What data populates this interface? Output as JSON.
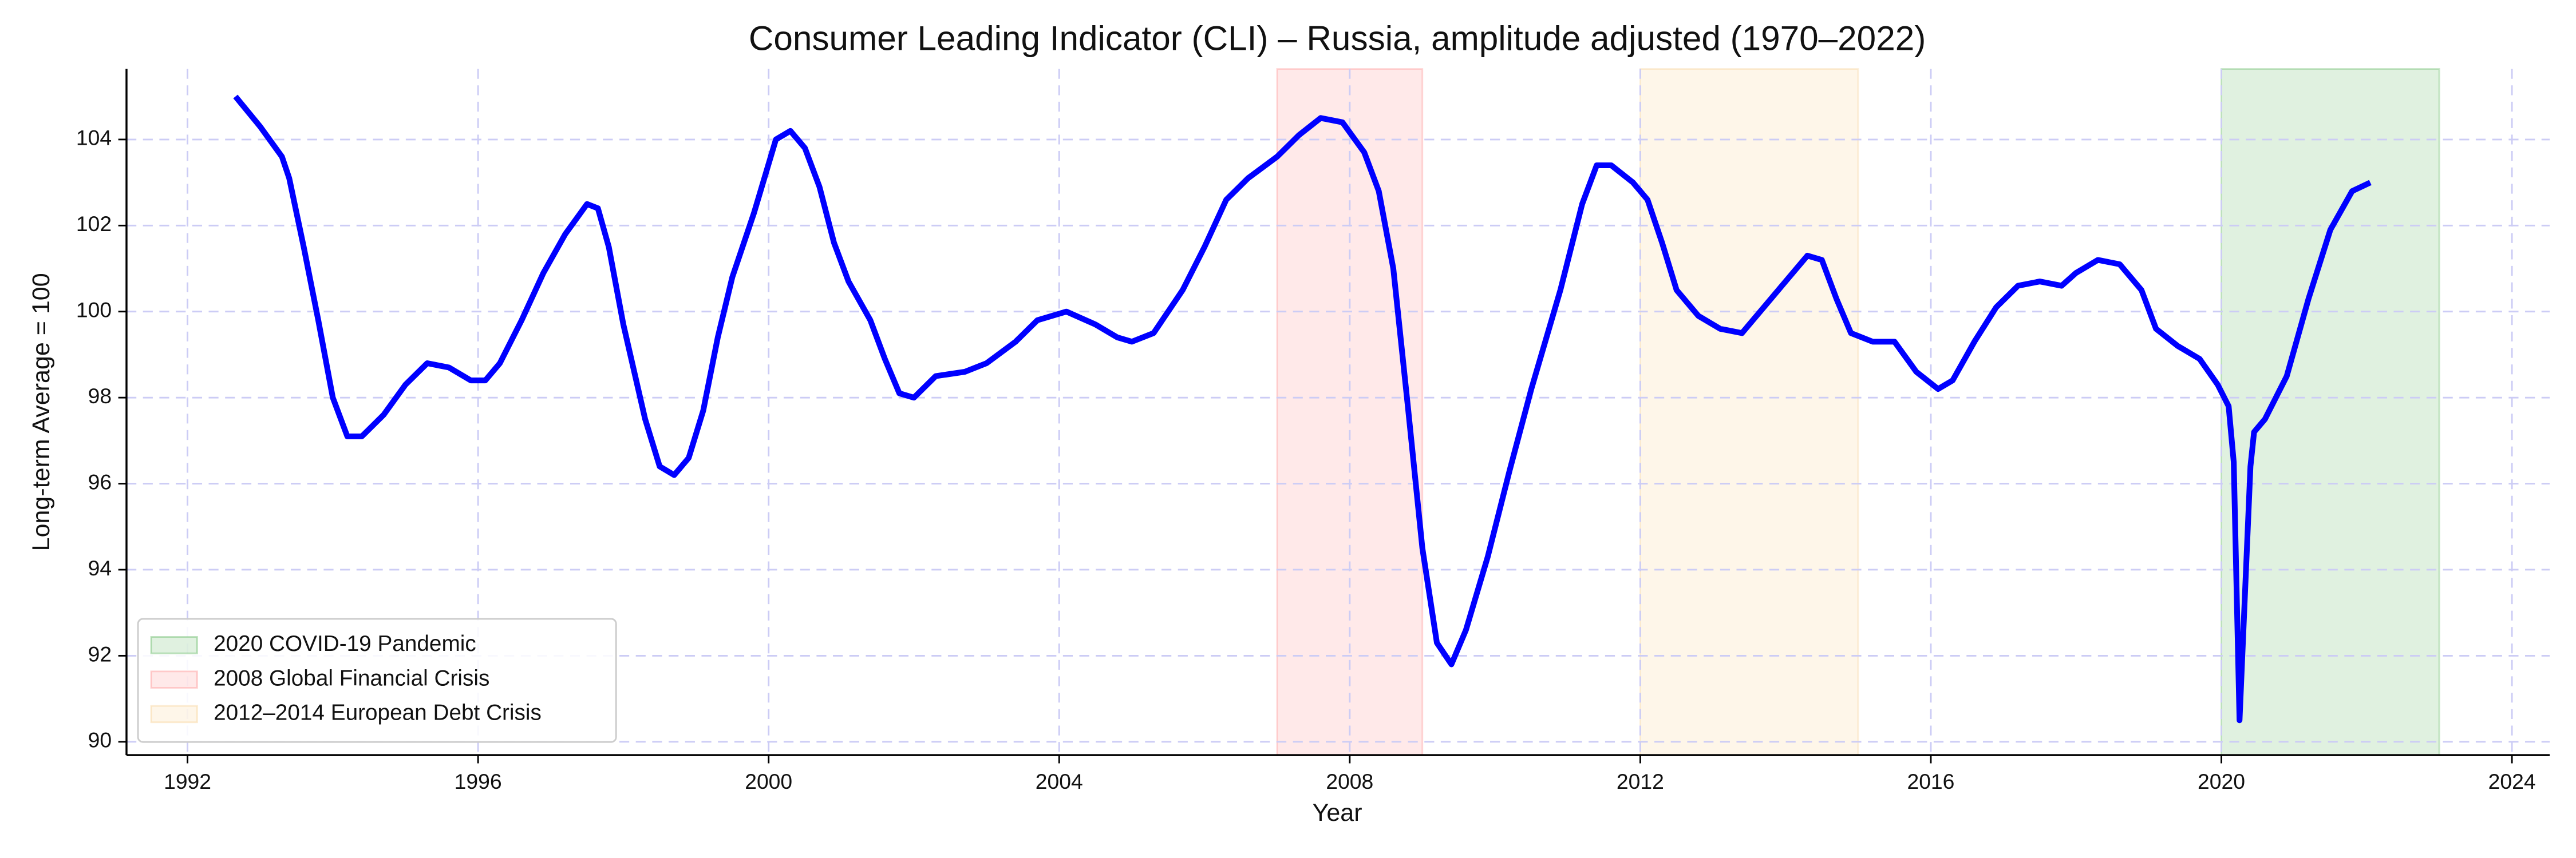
{
  "chart_data": {
    "type": "line",
    "title": "Consumer Leading Indicator (CLI) – Russia, amplitude adjusted (1970–2022)",
    "x_label": "Year",
    "y_label": "Long-term Average = 100",
    "x": [
      1992.66,
      1993.0,
      1993.3,
      1993.4,
      1993.6,
      1993.8,
      1994.0,
      1994.2,
      1994.4,
      1994.7,
      1995.0,
      1995.3,
      1995.6,
      1995.9,
      1996.1,
      1996.3,
      1996.6,
      1996.9,
      1997.2,
      1997.5,
      1997.65,
      1997.8,
      1998.0,
      1998.3,
      1998.5,
      1998.7,
      1998.9,
      1999.1,
      1999.3,
      1999.5,
      1999.8,
      2000.1,
      2000.3,
      2000.5,
      2000.7,
      2000.9,
      2001.1,
      2001.4,
      2001.6,
      2001.8,
      2002.0,
      2002.3,
      2002.7,
      2003.0,
      2003.4,
      2003.7,
      2004.1,
      2004.5,
      2004.8,
      2005.0,
      2005.3,
      2005.7,
      2006.0,
      2006.3,
      2006.6,
      2007.0,
      2007.3,
      2007.6,
      2007.9,
      2008.2,
      2008.4,
      2008.6,
      2008.8,
      2009.0,
      2009.2,
      2009.4,
      2009.6,
      2009.9,
      2010.2,
      2010.5,
      2010.9,
      2011.2,
      2011.4,
      2011.6,
      2011.9,
      2012.1,
      2012.3,
      2012.5,
      2012.8,
      2013.1,
      2013.4,
      2013.7,
      2014.0,
      2014.3,
      2014.5,
      2014.7,
      2014.9,
      2015.2,
      2015.5,
      2015.8,
      2016.1,
      2016.3,
      2016.6,
      2016.9,
      2017.2,
      2017.5,
      2017.8,
      2018.0,
      2018.3,
      2018.6,
      2018.9,
      2019.1,
      2019.4,
      2019.7,
      2019.95,
      2020.1,
      2020.17,
      2020.25,
      2020.4,
      2020.45,
      2020.6,
      2020.9,
      2021.2,
      2021.5,
      2021.8,
      2022.05
    ],
    "series": [
      {
        "name": "CLI",
        "color": "#0000ff",
        "values": [
          105.0,
          104.3,
          103.6,
          103.1,
          101.5,
          99.8,
          98.0,
          97.1,
          97.1,
          97.6,
          98.3,
          98.8,
          98.7,
          98.4,
          98.4,
          98.8,
          99.8,
          100.9,
          101.8,
          102.5,
          102.4,
          101.5,
          99.7,
          97.5,
          96.4,
          96.2,
          96.6,
          97.7,
          99.4,
          100.8,
          102.3,
          104.0,
          104.2,
          103.8,
          102.9,
          101.6,
          100.7,
          99.8,
          98.9,
          98.1,
          98.0,
          98.5,
          98.6,
          98.8,
          99.3,
          99.8,
          100.0,
          99.7,
          99.4,
          99.3,
          99.5,
          100.5,
          101.5,
          102.6,
          103.1,
          103.6,
          104.1,
          104.5,
          104.4,
          103.7,
          102.8,
          101.0,
          97.8,
          94.5,
          92.3,
          91.8,
          92.6,
          94.3,
          96.3,
          98.2,
          100.5,
          102.5,
          103.4,
          103.4,
          103.0,
          102.6,
          101.6,
          100.5,
          99.9,
          99.6,
          99.5,
          100.1,
          100.7,
          101.3,
          101.2,
          100.3,
          99.5,
          99.3,
          99.3,
          98.6,
          98.2,
          98.4,
          99.3,
          100.1,
          100.6,
          100.7,
          100.6,
          100.9,
          101.2,
          101.1,
          100.5,
          99.6,
          99.2,
          98.9,
          98.3,
          97.8,
          96.5,
          90.5,
          96.4,
          97.2,
          97.5,
          98.5,
          100.3,
          101.9,
          102.8,
          103.0
        ]
      }
    ],
    "shaded_regions": [
      {
        "name": "2020 COVID-19 Pandemic",
        "start": 2020,
        "end": 2023,
        "color": "#2ca02c"
      },
      {
        "name": "2008 Global Financial Crisis",
        "start": 2007,
        "end": 2009,
        "color": "#ff6b6b"
      },
      {
        "name": "2012–2014 European Debt Crisis",
        "start": 2012,
        "end": 2015,
        "color": "#f5c16c"
      }
    ],
    "xlim": [
      1991.16,
      2024.52
    ],
    "xticks": [
      1992,
      1996,
      2000,
      2004,
      2008,
      2012,
      2016,
      2020,
      2024
    ],
    "ylim": [
      89.69,
      105.64
    ],
    "yticks": [
      90,
      92,
      94,
      96,
      98,
      100,
      102,
      104
    ],
    "grid": true,
    "legend": "lower left"
  }
}
